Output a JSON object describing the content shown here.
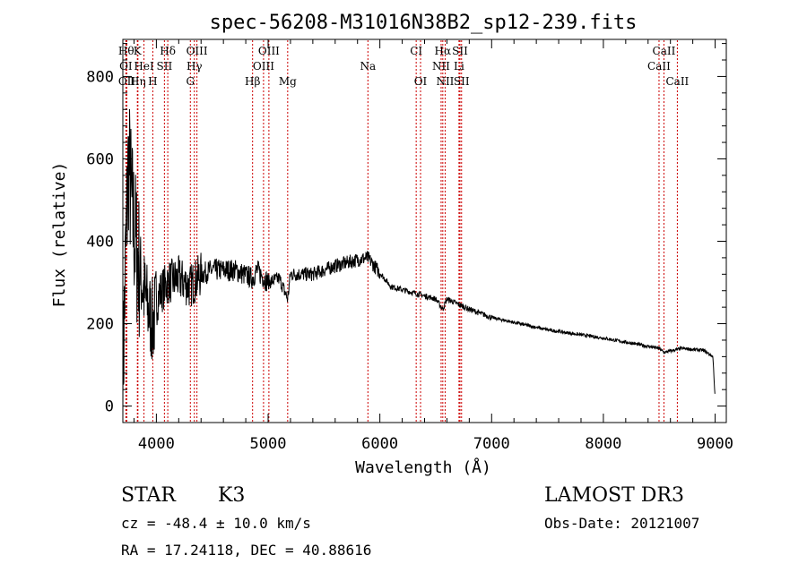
{
  "chart_data": {
    "type": "line",
    "title": "spec-56208-M31016N38B2_sp12-239.fits",
    "xlabel": "Wavelength (Å)",
    "ylabel": "Flux (relative)",
    "xlim": [
      3700,
      9100
    ],
    "ylim": [
      -40,
      890
    ],
    "xticks": [
      4000,
      5000,
      6000,
      7000,
      8000,
      9000
    ],
    "yticks": [
      0,
      200,
      400,
      600,
      800
    ],
    "spectrum_anchors": [
      [
        3700,
        60
      ],
      [
        3720,
        300
      ],
      [
        3750,
        600
      ],
      [
        3780,
        480
      ],
      [
        3820,
        380
      ],
      [
        3870,
        300
      ],
      [
        3930,
        230
      ],
      [
        3970,
        200
      ],
      [
        4020,
        270
      ],
      [
        4100,
        300
      ],
      [
        4200,
        310
      ],
      [
        4300,
        290
      ],
      [
        4400,
        320
      ],
      [
        4500,
        330
      ],
      [
        4700,
        330
      ],
      [
        4860,
        310
      ],
      [
        4900,
        330
      ],
      [
        5000,
        300
      ],
      [
        5100,
        310
      ],
      [
        5175,
        260
      ],
      [
        5200,
        320
      ],
      [
        5400,
        320
      ],
      [
        5600,
        340
      ],
      [
        5800,
        355
      ],
      [
        5893,
        360
      ],
      [
        5950,
        340
      ],
      [
        6100,
        290
      ],
      [
        6300,
        275
      ],
      [
        6500,
        260
      ],
      [
        6563,
        235
      ],
      [
        6600,
        260
      ],
      [
        6800,
        235
      ],
      [
        7000,
        215
      ],
      [
        7500,
        185
      ],
      [
        8000,
        165
      ],
      [
        8500,
        140
      ],
      [
        8542,
        130
      ],
      [
        8700,
        140
      ],
      [
        8900,
        135
      ],
      [
        8980,
        120
      ],
      [
        9000,
        20
      ]
    ],
    "lines": [
      {
        "label": "Hθ",
        "wl": 3730,
        "row": 0
      },
      {
        "label": "K",
        "wl": 3830,
        "row": 0
      },
      {
        "label": "Hδ",
        "wl": 4102,
        "row": 0
      },
      {
        "label": "OIII",
        "wl": 4363,
        "row": 0
      },
      {
        "label": "OIII",
        "wl": 5007,
        "row": 0
      },
      {
        "label": "CI",
        "wl": 6325,
        "row": 0
      },
      {
        "label": "Hα",
        "wl": 6563,
        "row": 0
      },
      {
        "label": "SII",
        "wl": 6717,
        "row": 0
      },
      {
        "label": "CaII",
        "wl": 8542,
        "row": 0
      },
      {
        "label": "OI",
        "wl": 3727,
        "row": 1
      },
      {
        "label": "HeI",
        "wl": 3889,
        "row": 1
      },
      {
        "label": "SII",
        "wl": 4072,
        "row": 1
      },
      {
        "label": "Hγ",
        "wl": 4340,
        "row": 1
      },
      {
        "label": "OIII",
        "wl": 4959,
        "row": 1
      },
      {
        "label": "NII",
        "wl": 6548,
        "row": 1
      },
      {
        "label": "Li",
        "wl": 6708,
        "row": 1
      },
      {
        "label": "CaII",
        "wl": 8498,
        "row": 1
      },
      {
        "label": "OII",
        "wl": 3736,
        "row": 2
      },
      {
        "label": "Hη",
        "wl": 3835,
        "row": 2
      },
      {
        "label": "H",
        "wl": 3968,
        "row": 2
      },
      {
        "label": "G",
        "wl": 4304,
        "row": 2
      },
      {
        "label": "Hβ",
        "wl": 4861,
        "row": 2
      },
      {
        "label": "Mg",
        "wl": 5175,
        "row": 2
      },
      {
        "label": "Na",
        "wl": 5893,
        "row": 1
      },
      {
        "label": "OI",
        "wl": 6364,
        "row": 2
      },
      {
        "label": "NII",
        "wl": 6584,
        "row": 2
      },
      {
        "label": "SII",
        "wl": 6731,
        "row": 2
      },
      {
        "label": "CaII",
        "wl": 8662,
        "row": 2
      }
    ],
    "line_color": "#cc0000"
  },
  "info": {
    "object_class": "STAR",
    "subclass": "K3",
    "survey": "LAMOST DR3",
    "redshift": "cz = -48.4 ± 10.0 km/s",
    "obs_date": "Obs-Date: 20121007",
    "coords": "RA =  17.24118, DEC =  40.88616"
  }
}
